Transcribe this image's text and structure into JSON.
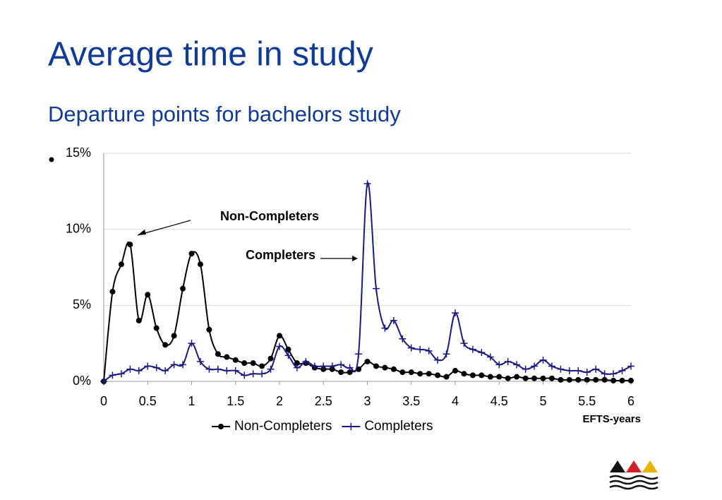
{
  "title": "Average time in study",
  "subtitle": "Departure points for bachelors study",
  "chart_data": {
    "type": "line",
    "x": [
      0,
      0.1,
      0.2,
      0.3,
      0.4,
      0.5,
      0.6,
      0.7,
      0.8,
      0.9,
      1,
      1.1,
      1.2,
      1.3,
      1.4,
      1.5,
      1.6,
      1.7,
      1.8,
      1.9,
      2,
      2.1,
      2.2,
      2.3,
      2.4,
      2.5,
      2.6,
      2.7,
      2.8,
      2.9,
      3,
      3.1,
      3.2,
      3.3,
      3.4,
      3.5,
      3.6,
      3.7,
      3.8,
      3.9,
      4,
      4.1,
      4.2,
      4.3,
      4.4,
      4.5,
      4.6,
      4.7,
      4.8,
      4.9,
      5,
      5.1,
      5.2,
      5.3,
      5.4,
      5.5,
      5.6,
      5.7,
      5.8,
      5.9,
      6
    ],
    "series": [
      {
        "name": "Non-Completers",
        "color": "#000000",
        "marker": "circle",
        "values": [
          0,
          5.9,
          7.7,
          9.0,
          4.0,
          5.7,
          3.5,
          2.4,
          3.0,
          6.1,
          8.4,
          7.7,
          3.4,
          1.8,
          1.6,
          1.4,
          1.2,
          1.2,
          1.0,
          1.5,
          3.0,
          2.1,
          1.2,
          1.2,
          0.9,
          0.8,
          0.8,
          0.6,
          0.6,
          0.8,
          1.3,
          1.0,
          0.9,
          0.8,
          0.6,
          0.6,
          0.5,
          0.5,
          0.4,
          0.3,
          0.7,
          0.5,
          0.4,
          0.4,
          0.3,
          0.3,
          0.2,
          0.3,
          0.2,
          0.2,
          0.2,
          0.2,
          0.1,
          0.1,
          0.1,
          0.1,
          0.1,
          0.1,
          0.05,
          0.05,
          0.05
        ]
      },
      {
        "name": "Completers",
        "color": "#1a1a80",
        "marker": "plus",
        "values": [
          0,
          0.4,
          0.5,
          0.8,
          0.7,
          1.0,
          0.9,
          0.7,
          1.1,
          1.1,
          2.5,
          1.3,
          0.8,
          0.8,
          0.7,
          0.7,
          0.4,
          0.5,
          0.5,
          0.8,
          2.3,
          1.7,
          0.9,
          1.3,
          1.0,
          1.0,
          1.0,
          1.1,
          0.9,
          1.8,
          13.0,
          6.1,
          3.5,
          4.0,
          2.8,
          2.2,
          2.1,
          2.0,
          1.4,
          1.8,
          4.5,
          2.5,
          2.1,
          1.9,
          1.6,
          1.1,
          1.3,
          1.1,
          0.8,
          1.0,
          1.4,
          1.0,
          0.8,
          0.7,
          0.7,
          0.6,
          0.8,
          0.5,
          0.5,
          0.7,
          1.0
        ]
      }
    ],
    "xlim": [
      0,
      6
    ],
    "xticks": [
      0,
      0.5,
      1,
      1.5,
      2,
      2.5,
      3,
      3.5,
      4,
      4.5,
      5,
      5.5,
      6
    ],
    "ylim": [
      0,
      15
    ],
    "yticks": [
      {
        "value": 0,
        "label": "0%"
      },
      {
        "value": 5,
        "label": "5%"
      },
      {
        "value": 10,
        "label": "10%"
      },
      {
        "value": 15,
        "label": "15%"
      }
    ],
    "xlabel": "EFTS-years",
    "grid": true,
    "legend": "bottom",
    "annotations": [
      {
        "text": "Non-Completers"
      },
      {
        "text": "Completers"
      }
    ]
  }
}
